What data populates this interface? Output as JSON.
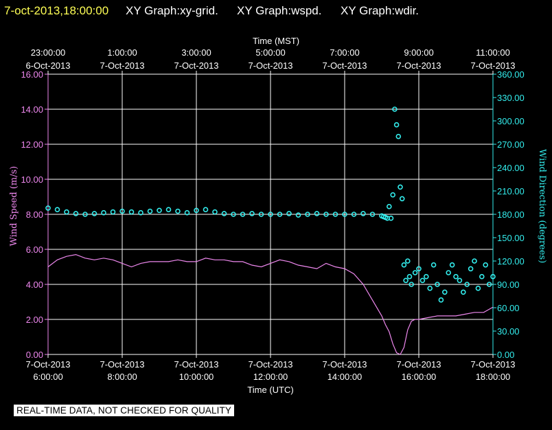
{
  "header": {
    "timestamp": "7-oct-2013,18:00:00",
    "titles": [
      "XY Graph:xy-grid.",
      "XY Graph:wspd.",
      "XY Graph:wdir."
    ]
  },
  "notice": "REAL-TIME DATA, NOT CHECKED FOR QUALITY",
  "colors": {
    "speed": "#ee88ee",
    "direction": "#33eeee",
    "grid": "#ffffff",
    "background": "#000000",
    "timestamp": "#ffff55"
  },
  "chart_data": {
    "type": "line",
    "grid": true,
    "x_top_label": "Time (MST)",
    "x_bottom_label": "Time (UTC)",
    "y_left_label": "Wind Speed (m/s)",
    "y_right_label": "Wind Direction (degrees)",
    "x_range_utc_hours": [
      6,
      18
    ],
    "y_left_range": [
      0,
      16
    ],
    "y_right_range": [
      0,
      360
    ],
    "top_ticks": [
      {
        "h": 6,
        "time": "23:00:00",
        "date": "6-Oct-2013"
      },
      {
        "h": 8,
        "time": "1:00:00",
        "date": "7-Oct-2013"
      },
      {
        "h": 10,
        "time": "3:00:00",
        "date": "7-Oct-2013"
      },
      {
        "h": 12,
        "time": "5:00:00",
        "date": "7-Oct-2013"
      },
      {
        "h": 14,
        "time": "7:00:00",
        "date": "7-Oct-2013"
      },
      {
        "h": 16,
        "time": "9:00:00",
        "date": "7-Oct-2013"
      },
      {
        "h": 18,
        "time": "11:00:00",
        "date": "7-Oct-2013"
      }
    ],
    "bottom_ticks": [
      {
        "h": 6,
        "date": "7-Oct-2013",
        "time": "6:00:00"
      },
      {
        "h": 8,
        "date": "7-Oct-2013",
        "time": "8:00:00"
      },
      {
        "h": 10,
        "date": "7-Oct-2013",
        "time": "10:00:00"
      },
      {
        "h": 12,
        "date": "7-Oct-2013",
        "time": "12:00:00"
      },
      {
        "h": 14,
        "date": "7-Oct-2013",
        "time": "14:00:00"
      },
      {
        "h": 16,
        "date": "7-Oct-2013",
        "time": "16:00:00"
      },
      {
        "h": 18,
        "date": "7-Oct-2013",
        "time": "18:00:00"
      }
    ],
    "left_ticks": [
      "0.00",
      "2.00",
      "4.00",
      "6.00",
      "8.00",
      "10.00",
      "12.00",
      "14.00",
      "16.00"
    ],
    "right_ticks": [
      "0.00",
      "30.00",
      "60.00",
      "90.00",
      "120.00",
      "150.00",
      "180.00",
      "210.00",
      "240.00",
      "270.00",
      "300.00",
      "330.00",
      "360.00"
    ],
    "series": [
      {
        "name": "Wind Speed",
        "axis": "left",
        "style": "line",
        "x": [
          6.0,
          6.25,
          6.5,
          6.75,
          7.0,
          7.25,
          7.5,
          7.75,
          8.0,
          8.25,
          8.5,
          8.75,
          9.0,
          9.25,
          9.5,
          9.75,
          10.0,
          10.25,
          10.5,
          10.75,
          11.0,
          11.25,
          11.5,
          11.75,
          12.0,
          12.25,
          12.5,
          12.75,
          13.0,
          13.25,
          13.5,
          13.75,
          14.0,
          14.25,
          14.5,
          14.75,
          15.0,
          15.1,
          15.2,
          15.3,
          15.4,
          15.5,
          15.6,
          15.7,
          15.8,
          15.9,
          16.0,
          16.25,
          16.5,
          16.75,
          17.0,
          17.25,
          17.5,
          17.75,
          18.0
        ],
        "y": [
          5.0,
          5.4,
          5.6,
          5.7,
          5.5,
          5.4,
          5.5,
          5.4,
          5.2,
          5.0,
          5.2,
          5.3,
          5.3,
          5.3,
          5.4,
          5.3,
          5.3,
          5.5,
          5.4,
          5.4,
          5.3,
          5.3,
          5.1,
          5.0,
          5.2,
          5.4,
          5.3,
          5.1,
          5.0,
          4.9,
          5.2,
          5.0,
          4.9,
          4.6,
          4.0,
          3.1,
          2.2,
          1.7,
          1.3,
          0.6,
          0.1,
          0.0,
          0.4,
          1.4,
          1.9,
          2.0,
          2.0,
          2.1,
          2.2,
          2.2,
          2.2,
          2.3,
          2.4,
          2.4,
          2.7
        ]
      },
      {
        "name": "Wind Direction",
        "axis": "right",
        "style": "points",
        "x": [
          6.0,
          6.25,
          6.5,
          6.75,
          7.0,
          7.25,
          7.5,
          7.75,
          8.0,
          8.25,
          8.5,
          8.75,
          9.0,
          9.25,
          9.5,
          9.75,
          10.0,
          10.25,
          10.5,
          10.75,
          11.0,
          11.25,
          11.5,
          11.75,
          12.0,
          12.25,
          12.5,
          12.75,
          13.0,
          13.25,
          13.5,
          13.75,
          14.0,
          14.25,
          14.5,
          14.75,
          15.0,
          15.05,
          15.1,
          15.15,
          15.2,
          15.25,
          15.3,
          15.35,
          15.4,
          15.45,
          15.5,
          15.55,
          15.6,
          15.65,
          15.7,
          15.75,
          15.8,
          15.9,
          16.0,
          16.1,
          16.2,
          16.3,
          16.4,
          16.5,
          16.6,
          16.7,
          16.8,
          16.9,
          17.0,
          17.1,
          17.2,
          17.3,
          17.4,
          17.5,
          17.6,
          17.7,
          17.8,
          17.9,
          18.0
        ],
        "y": [
          188,
          186,
          183,
          181,
          180,
          181,
          182,
          183,
          184,
          183,
          182,
          184,
          185,
          186,
          184,
          182,
          185,
          186,
          183,
          181,
          180,
          180,
          181,
          180,
          180,
          180,
          181,
          179,
          180,
          181,
          180,
          180,
          180,
          180,
          181,
          180,
          178,
          177,
          176,
          175,
          190,
          175,
          205,
          315,
          295,
          280,
          215,
          200,
          115,
          95,
          120,
          100,
          90,
          105,
          110,
          95,
          100,
          85,
          115,
          90,
          70,
          80,
          105,
          115,
          100,
          95,
          80,
          90,
          110,
          120,
          85,
          100,
          115,
          90,
          100
        ]
      }
    ]
  }
}
